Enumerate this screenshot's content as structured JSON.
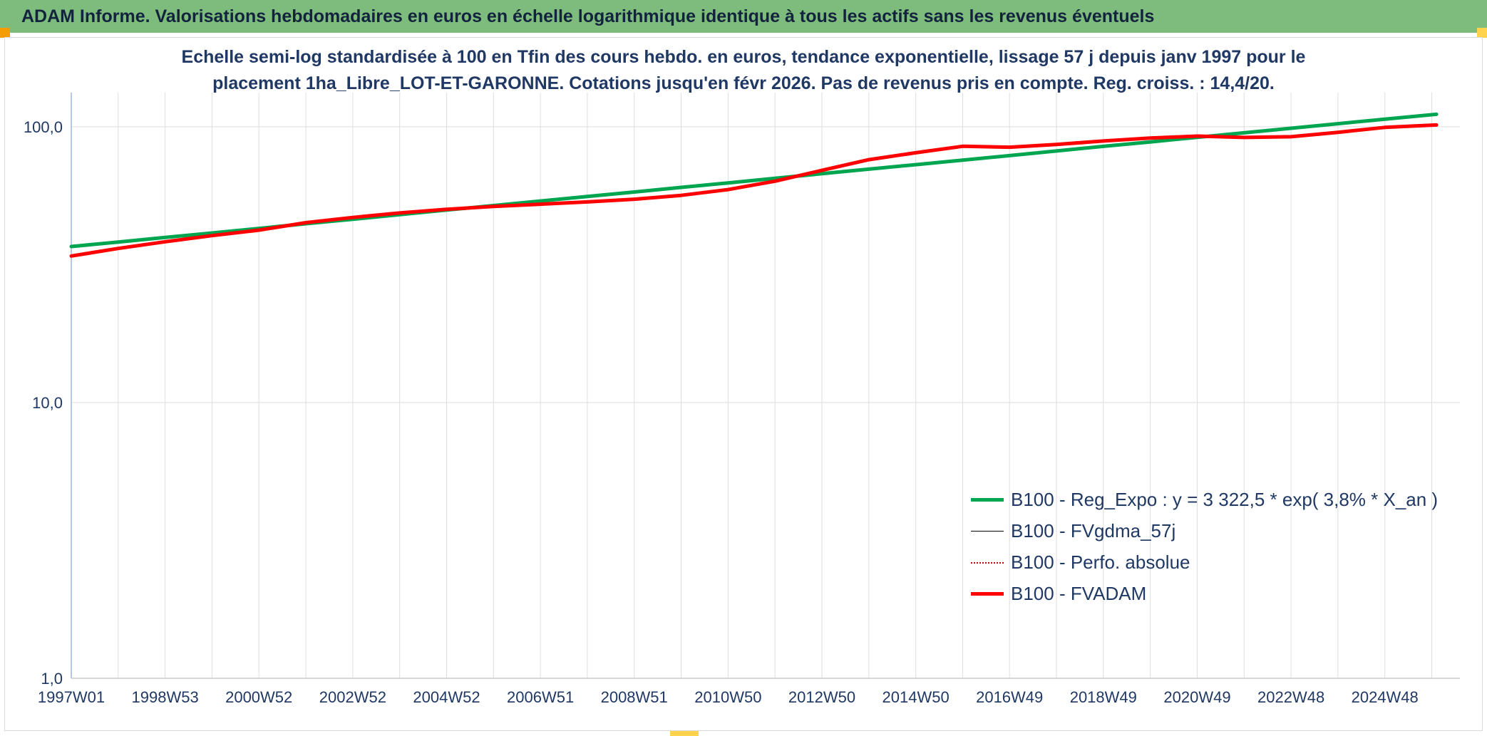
{
  "banner": {
    "title": "ADAM Informe. Valorisations hebdomadaires en euros en échelle logarithmique identique à tous les actifs sans les revenus éventuels"
  },
  "chart": {
    "subtitle_lines": [
      "Echelle semi-log standardisée à 100 en Tfin des cours hebdo. en euros, tendance exponentielle, lissage 57 j depuis janv 1997 pour le",
      "placement 1ha_Libre_LOT-ET-GARONNE. Cotations jusqu'en févr 2026. Pas de revenus pris en compte. Reg. croiss. : 14,4/20."
    ]
  },
  "colors": {
    "banner_bg": "#7dbc7d",
    "accent_orange": "#f59d00",
    "accent_yellow": "#ffd34d",
    "text_navy": "#1f3864",
    "gridline": "#dedede",
    "y_axis_line": "#9cb6dd",
    "x_axis_line": "#c9c9c9"
  },
  "chart_data": {
    "type": "line",
    "title": "Echelle semi-log standardisée à 100 en Tfin des cours hebdo. en euros, tendance exponentielle, lissage 57 j depuis janv 1997 pour le placement 1ha_Libre_LOT-ET-GARONNE. Cotations jusqu'en févr 2026. Pas de revenus pris en compte. Reg. croiss. : 14,4/20.",
    "legend_position": "right-lower-inside",
    "grid": "on",
    "x_axis": {
      "range": [
        1997,
        2026.6
      ],
      "gridline_interval_years": 1,
      "tick_positions": [
        1997,
        1999,
        2001,
        2003,
        2005,
        2007,
        2009,
        2011,
        2013,
        2015,
        2017,
        2019,
        2021,
        2023,
        2025
      ],
      "tick_labels": [
        "1997W01",
        "1998W53",
        "2000W52",
        "2002W52",
        "2004W52",
        "2006W51",
        "2008W51",
        "2010W50",
        "2012W50",
        "2014W50",
        "2016W49",
        "2018W49",
        "2020W49",
        "2022W48",
        "2024W48"
      ]
    },
    "y_axis": {
      "scale": "log",
      "range": [
        1,
        133
      ],
      "tick_values": [
        100,
        10,
        1
      ],
      "tick_labels": [
        "100,0",
        "10,0",
        "1,0"
      ]
    },
    "x": [
      1997,
      1998,
      1999,
      2000,
      2001,
      2002,
      2003,
      2004,
      2005,
      2006,
      2007,
      2008,
      2009,
      2010,
      2011,
      2012,
      2013,
      2014,
      2015,
      2016,
      2017,
      2018,
      2019,
      2020,
      2021,
      2022,
      2023,
      2024,
      2025,
      2026.1
    ],
    "series": [
      {
        "name": "B100 - Reg_Expo : y = 3 322,5 * exp( 3,8% *  X_an )",
        "color": "#00a550",
        "width": 5,
        "style": "solid",
        "values": [
          36.8,
          38.2,
          39.7,
          41.2,
          42.8,
          44.5,
          46.2,
          48.0,
          49.9,
          51.8,
          53.8,
          55.9,
          58.0,
          60.3,
          62.6,
          65.0,
          67.6,
          70.2,
          72.9,
          75.7,
          78.6,
          81.7,
          84.9,
          88.1,
          91.6,
          95.1,
          98.8,
          102.6,
          106.6,
          111.0
        ]
      },
      {
        "name": "B100 - FVgdma_57j",
        "color": "#000000",
        "width": 1.5,
        "style": "solid",
        "values": [
          34.0,
          36.2,
          38.3,
          40.3,
          42.2,
          44.9,
          46.9,
          48.7,
          50.2,
          51.4,
          52.4,
          53.4,
          54.6,
          56.4,
          59.2,
          63.5,
          69.5,
          76.0,
          80.5,
          85.0,
          84.3,
          86.3,
          88.8,
          91.0,
          92.5,
          91.5,
          92.0,
          95.5,
          99.5,
          101.5
        ]
      },
      {
        "name": "B100 - Perfo. absolue",
        "color": "#c00000",
        "width": 1.5,
        "style": "dotted",
        "values": [
          34.0,
          36.2,
          38.3,
          40.3,
          42.2,
          44.9,
          46.9,
          48.7,
          50.2,
          51.4,
          52.4,
          53.4,
          54.6,
          56.4,
          59.2,
          63.5,
          69.5,
          76.0,
          80.5,
          85.0,
          84.3,
          86.3,
          88.8,
          91.0,
          92.5,
          91.5,
          92.0,
          95.5,
          99.5,
          101.5
        ]
      },
      {
        "name": "B100 - FVADAM",
        "color": "#ff0000",
        "width": 5,
        "style": "solid",
        "values": [
          34.0,
          36.2,
          38.3,
          40.3,
          42.2,
          44.9,
          46.9,
          48.7,
          50.2,
          51.4,
          52.4,
          53.4,
          54.6,
          56.4,
          59.2,
          63.5,
          69.5,
          76.0,
          80.5,
          85.0,
          84.3,
          86.3,
          88.8,
          91.0,
          92.5,
          91.5,
          92.0,
          95.5,
          99.5,
          101.5
        ]
      }
    ]
  }
}
